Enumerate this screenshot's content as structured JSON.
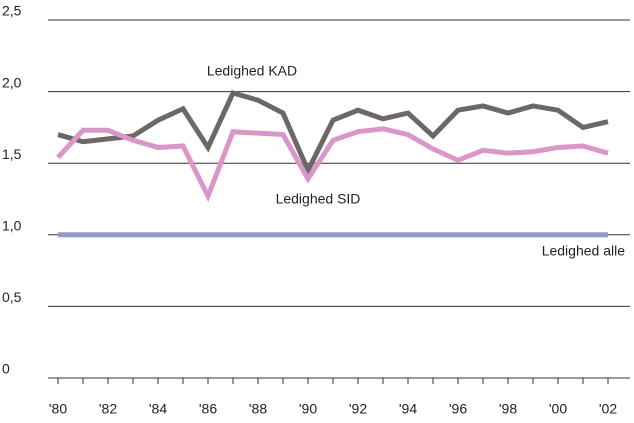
{
  "chart_data": {
    "type": "line",
    "categories": [
      "'80",
      null,
      "'82",
      null,
      "'84",
      null,
      "'86",
      null,
      "'88",
      null,
      "'90",
      null,
      "'92",
      null,
      "'94",
      null,
      "'96",
      null,
      "'98",
      null,
      "'00",
      null,
      "'02"
    ],
    "series": [
      {
        "name": "Ledighed KAD",
        "color": "#6e6767",
        "values": [
          1.7,
          1.65,
          1.67,
          1.69,
          1.8,
          1.88,
          1.61,
          1.99,
          1.94,
          1.85,
          1.45,
          1.8,
          1.87,
          1.81,
          1.85,
          1.69,
          1.87,
          1.9,
          1.85,
          1.9,
          1.87,
          1.75,
          1.79
        ]
      },
      {
        "name": "Ledighed SID",
        "color": "#d996c6",
        "values": [
          1.54,
          1.73,
          1.73,
          1.66,
          1.61,
          1.62,
          1.27,
          1.72,
          1.71,
          1.7,
          1.39,
          1.66,
          1.72,
          1.74,
          1.7,
          1.6,
          1.52,
          1.59,
          1.57,
          1.58,
          1.61,
          1.62,
          1.57
        ]
      },
      {
        "name": "Ledighed alle",
        "color": "#8e9bcb",
        "values": [
          1.0,
          1.0,
          1.0,
          1.0,
          1.0,
          1.0,
          1.0,
          1.0,
          1.0,
          1.0,
          1.0,
          1.0,
          1.0,
          1.0,
          1.0,
          1.0,
          1.0,
          1.0,
          1.0,
          1.0,
          1.0,
          1.0,
          1.0
        ]
      }
    ],
    "ylim": [
      0,
      2.5
    ],
    "yticks": [
      0,
      {
        "value": 0.5,
        "label": "0,5"
      },
      {
        "value": 1.0,
        "label": "1,0"
      },
      {
        "value": 1.5,
        "label": "1,5"
      },
      {
        "value": 2.0,
        "label": "2,0"
      },
      {
        "value": 2.5,
        "label": "2,5"
      }
    ],
    "grid": true
  }
}
